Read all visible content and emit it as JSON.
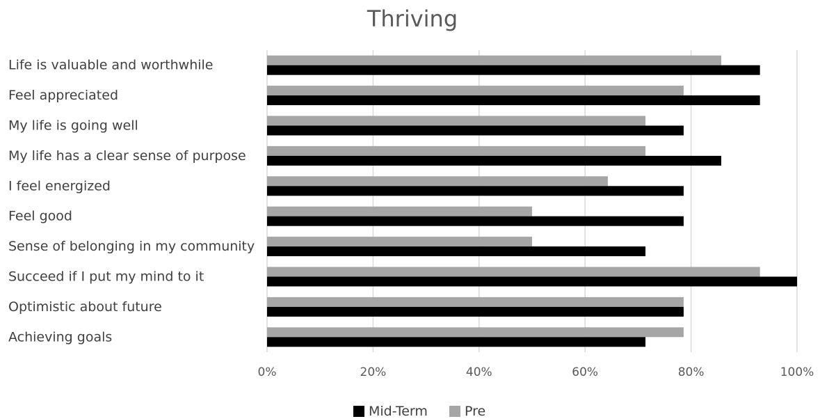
{
  "chart_data": {
    "type": "bar",
    "orientation": "horizontal",
    "title": "Thriving",
    "categories": [
      "Life is valuable and worthwhile",
      "Feel appreciated",
      "My life is going well",
      "My life has a clear sense of purpose",
      "I feel energized",
      "Feel good",
      "Sense of belonging in my community",
      "Succeed if I put my mind to it",
      "Optimistic about future",
      "Achieving goals"
    ],
    "series": [
      {
        "name": "Mid-Term",
        "color": "#000000",
        "values": [
          0.93,
          0.93,
          0.786,
          0.857,
          0.786,
          0.786,
          0.714,
          1.0,
          0.786,
          0.714
        ]
      },
      {
        "name": "Pre",
        "color": "#a6a6a6",
        "values": [
          0.857,
          0.786,
          0.714,
          0.714,
          0.643,
          0.5,
          0.5,
          0.93,
          0.786,
          0.786
        ]
      }
    ],
    "xlim": [
      0,
      1
    ],
    "x_ticks": [
      "0%",
      "20%",
      "40%",
      "60%",
      "80%",
      "100%"
    ],
    "grid": true,
    "legend_position": "bottom"
  }
}
